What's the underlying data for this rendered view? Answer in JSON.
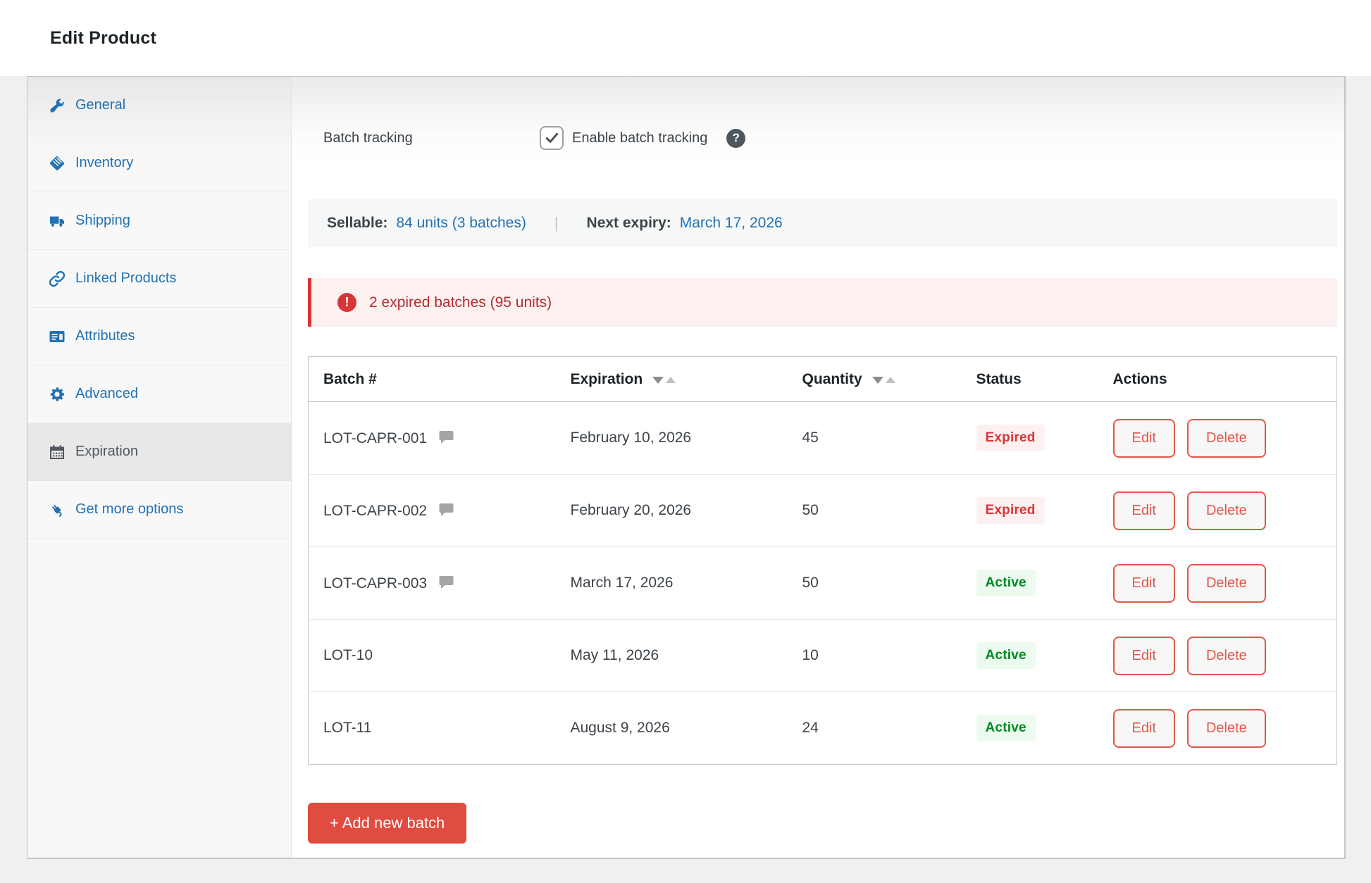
{
  "header": {
    "title": "Edit Product"
  },
  "sidebar": {
    "items": [
      {
        "label": "General",
        "icon": "wrench-icon",
        "active": false
      },
      {
        "label": "Inventory",
        "icon": "tag-icon",
        "active": false
      },
      {
        "label": "Shipping",
        "icon": "truck-icon",
        "active": false
      },
      {
        "label": "Linked Products",
        "icon": "link-icon",
        "active": false
      },
      {
        "label": "Attributes",
        "icon": "attributes-icon",
        "active": false
      },
      {
        "label": "Advanced",
        "icon": "gear-icon",
        "active": false
      },
      {
        "label": "Expiration",
        "icon": "calendar-icon",
        "active": true
      },
      {
        "label": "Get more options",
        "icon": "plug-icon",
        "active": false
      }
    ]
  },
  "batch_tracking": {
    "label": "Batch tracking",
    "checkbox_label": "Enable batch tracking",
    "checked": true,
    "help_glyph": "?"
  },
  "summary": {
    "sellable_label": "Sellable:",
    "sellable_value": "84 units (3 batches)",
    "divider": "|",
    "next_expiry_label": "Next expiry:",
    "next_expiry_value": "March 17, 2026"
  },
  "warning": {
    "alert_glyph": "!",
    "text": "2 expired batches (95 units)"
  },
  "table": {
    "headers": [
      {
        "label": "Batch #",
        "sortable": false
      },
      {
        "label": "Expiration",
        "sortable": true
      },
      {
        "label": "Quantity",
        "sortable": true
      },
      {
        "label": "Status",
        "sortable": false
      },
      {
        "label": "Actions",
        "sortable": false
      }
    ],
    "rows": [
      {
        "batch": "LOT-CAPR-001",
        "has_note": true,
        "expiration": "February 10, 2026",
        "quantity": "45",
        "status": "Expired"
      },
      {
        "batch": "LOT-CAPR-002",
        "has_note": true,
        "expiration": "February 20, 2026",
        "quantity": "50",
        "status": "Expired"
      },
      {
        "batch": "LOT-CAPR-003",
        "has_note": true,
        "expiration": "March 17, 2026",
        "quantity": "50",
        "status": "Active"
      },
      {
        "batch": "LOT-10",
        "has_note": false,
        "expiration": "May 11, 2026",
        "quantity": "10",
        "status": "Active"
      },
      {
        "batch": "LOT-11",
        "has_note": false,
        "expiration": "August 9, 2026",
        "quantity": "24",
        "status": "Active"
      }
    ],
    "actions": {
      "edit_label": "Edit",
      "delete_label": "Delete"
    }
  },
  "add_button": {
    "label": "+ Add new batch"
  },
  "colors": {
    "accent_blue": "#2271b1",
    "danger_red": "#d63638",
    "warning_text": "#b32d2e",
    "warning_bg": "#fcf0f1",
    "action_button_red": "#e3564a",
    "add_button_bg": "#e04c3f",
    "expired_badge_bg": "#fcf0f1",
    "expired_badge_text": "#d63638",
    "active_badge_bg": "#edfaef",
    "active_badge_text": "#008a20"
  }
}
